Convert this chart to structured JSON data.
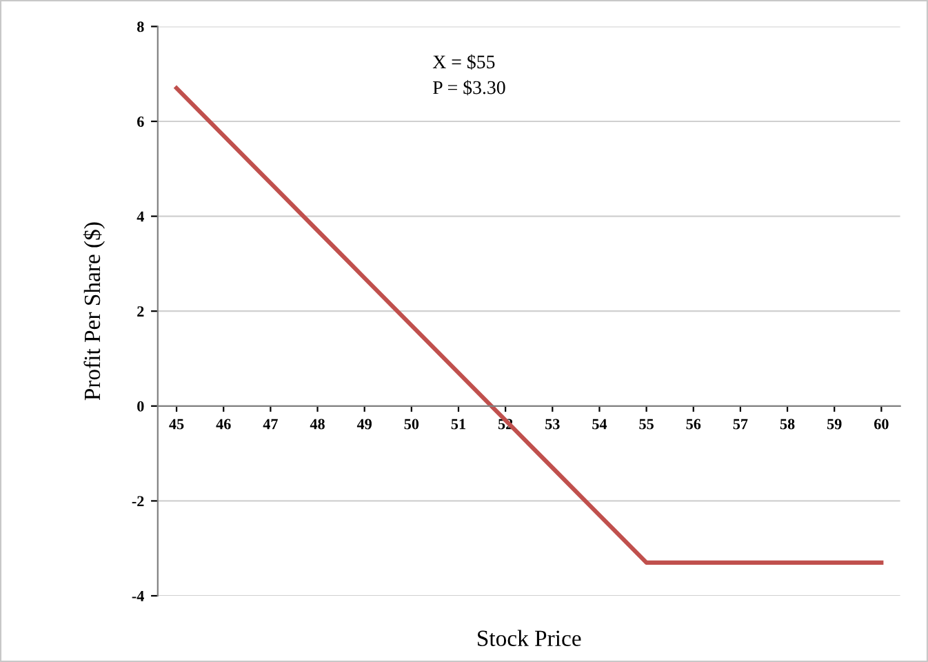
{
  "chart_data": {
    "type": "line",
    "xlabel": "Stock Price",
    "ylabel": "Profit Per Share ($)",
    "categories": [
      "45",
      "46",
      "47",
      "48",
      "49",
      "50",
      "51",
      "52",
      "53",
      "54",
      "55",
      "56",
      "57",
      "58",
      "59",
      "60"
    ],
    "series": [
      {
        "color": "#c0504d",
        "values": [
          6.7,
          5.7,
          4.7,
          3.7,
          2.7,
          1.7,
          0.7,
          -0.3,
          -1.3,
          -2.3,
          -3.3,
          -3.3,
          -3.3,
          -3.3,
          -3.3,
          -3.3
        ]
      }
    ],
    "ylim": [
      -4,
      8
    ],
    "yticks": [
      -4,
      -2,
      0,
      2,
      4,
      6,
      8
    ],
    "grid": "y",
    "marker": "none",
    "line_style": "solid",
    "annotations": [
      "X = $55",
      "P = $3.30"
    ]
  }
}
